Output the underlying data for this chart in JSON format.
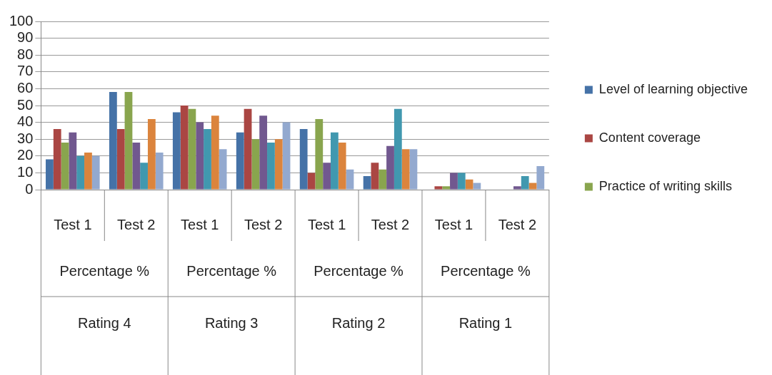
{
  "chart_data": {
    "type": "bar",
    "categories": [
      "Test 1",
      "Test 2",
      "Test 1",
      "Test 2",
      "Test 1",
      "Test 2",
      "Test 1",
      "Test 2"
    ],
    "series": [
      {
        "name": "Level of learning objective",
        "color": "#4572a7",
        "values": [
          18,
          58,
          46,
          34,
          36,
          8,
          0,
          0
        ]
      },
      {
        "name": "Content coverage",
        "color": "#aa4643",
        "values": [
          36,
          36,
          50,
          48,
          10,
          16,
          2,
          0
        ]
      },
      {
        "name": "Practice of writing skills",
        "color": "#89a54e",
        "values": [
          28,
          58,
          48,
          30,
          42,
          12,
          2,
          0
        ]
      },
      {
        "color": "#71588f",
        "values": [
          34,
          28,
          40,
          44,
          16,
          26,
          10,
          2
        ]
      },
      {
        "color": "#4198af",
        "values": [
          20,
          16,
          36,
          28,
          34,
          48,
          10,
          8
        ]
      },
      {
        "color": "#db843d",
        "values": [
          22,
          42,
          44,
          30,
          28,
          24,
          6,
          4
        ]
      },
      {
        "color": "#93a9cf",
        "values": [
          20,
          22,
          24,
          40,
          12,
          24,
          4,
          14
        ]
      }
    ],
    "annotations": [
      "Percentage %",
      "Percentage %",
      "Percentage %",
      "Percentage %",
      "Rating 4",
      "Rating 3",
      "Rating 2",
      "Rating 1"
    ],
    "ylim": [
      0,
      100
    ],
    "yticks": [
      0,
      10,
      20,
      30,
      40,
      50,
      60,
      70,
      80,
      90,
      100
    ],
    "grid": "y",
    "legend": "right"
  }
}
